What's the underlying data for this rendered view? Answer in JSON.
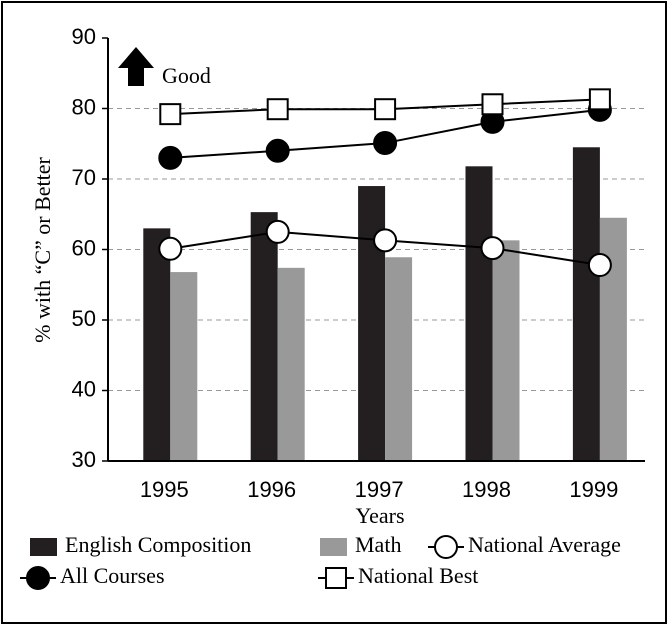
{
  "chart_data": {
    "type": "bar",
    "x_label": "Years",
    "y_label": "% with “C” or Better",
    "annotation": "Good",
    "categories": [
      "1995",
      "1996",
      "1997",
      "1998",
      "1999"
    ],
    "series": [
      {
        "name": "English Composition",
        "kind": "bar",
        "color": "#231f20",
        "values": [
          63.0,
          65.3,
          69.0,
          71.8,
          74.5
        ]
      },
      {
        "name": "Math",
        "kind": "bar",
        "color": "#999999",
        "values": [
          56.8,
          57.4,
          58.9,
          61.3,
          64.5
        ]
      },
      {
        "name": "National Average",
        "kind": "line",
        "marker": "circle-open",
        "color": "#000000",
        "values": [
          60.1,
          62.5,
          61.3,
          60.2,
          57.8
        ]
      },
      {
        "name": "All Courses",
        "kind": "line",
        "marker": "circle-filled",
        "color": "#000000",
        "values": [
          73.0,
          74.0,
          75.1,
          78.1,
          79.8
        ]
      },
      {
        "name": "National Best",
        "kind": "line",
        "marker": "square-open",
        "color": "#000000",
        "values": [
          79.2,
          79.9,
          79.9,
          80.6,
          81.3
        ]
      }
    ],
    "ylim": [
      30,
      90
    ],
    "yticks": [
      30,
      40,
      50,
      60,
      70,
      80,
      90
    ],
    "grid": true
  }
}
